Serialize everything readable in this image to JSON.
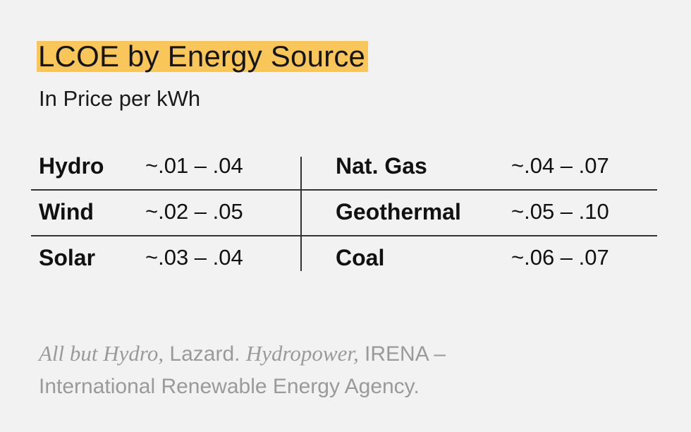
{
  "title": "LCOE by Energy Source",
  "subtitle": "In Price per kWh",
  "table": {
    "rows": [
      {
        "left_source": "Hydro",
        "left_value": "~.01 – .04",
        "right_source": "Nat. Gas",
        "right_value": "~.04 – .07"
      },
      {
        "left_source": "Wind",
        "left_value": "~.02 – .05",
        "right_source": "Geothermal",
        "right_value": "~.05 – .10"
      },
      {
        "left_source": "Solar",
        "left_value": "~.03 – .04",
        "right_source": "Coal",
        "right_value": "~.06 – .07"
      }
    ]
  },
  "note": {
    "part1_italic": "All but Hydro,",
    "part2": " Lazard. ",
    "part3_italic": "Hydropower,",
    "part4": " IRENA –",
    "line2": "International Renewable Energy Agency."
  },
  "colors": {
    "highlight": "#f9c65a",
    "background": "#f2f2f2",
    "note_text": "#9a9a9a"
  }
}
